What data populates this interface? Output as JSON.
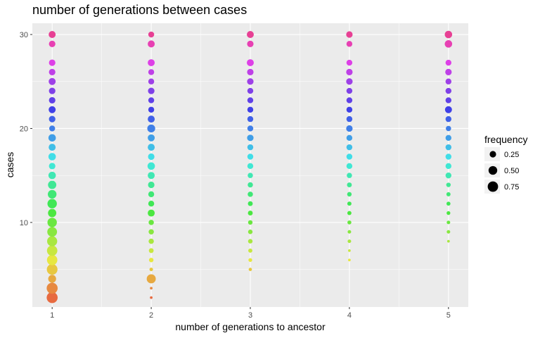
{
  "chart_data": {
    "type": "scatter",
    "title": "number of generations between cases",
    "xlabel": "number of generations to ancestor",
    "ylabel": "cases",
    "xlim": [
      0.8,
      5.2
    ],
    "ylim": [
      1,
      31.2
    ],
    "x_ticks": [
      1,
      2,
      3,
      4,
      5
    ],
    "y_ticks": [
      10,
      20,
      30
    ],
    "grid": true,
    "legend": {
      "title": "frequency",
      "position": "right",
      "entries": [
        {
          "label": "0.25",
          "value": 0.25
        },
        {
          "label": "0.50",
          "value": 0.5
        },
        {
          "label": "0.75",
          "value": 0.75
        }
      ]
    },
    "color_by": "cases",
    "series": [
      {
        "x": 1,
        "points": [
          {
            "y": 2,
            "f": 0.85
          },
          {
            "y": 3,
            "f": 0.85
          },
          {
            "y": 4,
            "f": 0.4
          },
          {
            "y": 5,
            "f": 0.8
          },
          {
            "y": 6,
            "f": 0.75
          },
          {
            "y": 7,
            "f": 0.75
          },
          {
            "y": 8,
            "f": 0.7
          },
          {
            "y": 9,
            "f": 0.65
          },
          {
            "y": 10,
            "f": 0.6
          },
          {
            "y": 11,
            "f": 0.45
          },
          {
            "y": 12,
            "f": 0.6
          },
          {
            "y": 13,
            "f": 0.5
          },
          {
            "y": 14,
            "f": 0.45
          },
          {
            "y": 15,
            "f": 0.35
          },
          {
            "y": 16,
            "f": 0.25
          },
          {
            "y": 17,
            "f": 0.35
          },
          {
            "y": 18,
            "f": 0.3
          },
          {
            "y": 19,
            "f": 0.35
          },
          {
            "y": 20,
            "f": 0.2
          },
          {
            "y": 21,
            "f": 0.25
          },
          {
            "y": 22,
            "f": 0.3
          },
          {
            "y": 23,
            "f": 0.25
          },
          {
            "y": 24,
            "f": 0.25
          },
          {
            "y": 25,
            "f": 0.3
          },
          {
            "y": 26,
            "f": 0.25
          },
          {
            "y": 27,
            "f": 0.25
          },
          {
            "y": 29,
            "f": 0.25
          },
          {
            "y": 30,
            "f": 0.3
          }
        ]
      },
      {
        "x": 2,
        "points": [
          {
            "y": 2,
            "f": 0.02
          },
          {
            "y": 3,
            "f": 0.02
          },
          {
            "y": 4,
            "f": 0.55
          },
          {
            "y": 5,
            "f": 0.05
          },
          {
            "y": 6,
            "f": 0.1
          },
          {
            "y": 7,
            "f": 0.12
          },
          {
            "y": 8,
            "f": 0.15
          },
          {
            "y": 9,
            "f": 0.15
          },
          {
            "y": 10,
            "f": 0.15
          },
          {
            "y": 11,
            "f": 0.3
          },
          {
            "y": 12,
            "f": 0.2
          },
          {
            "y": 13,
            "f": 0.2
          },
          {
            "y": 14,
            "f": 0.25
          },
          {
            "y": 15,
            "f": 0.3
          },
          {
            "y": 16,
            "f": 0.35
          },
          {
            "y": 17,
            "f": 0.25
          },
          {
            "y": 18,
            "f": 0.3
          },
          {
            "y": 19,
            "f": 0.3
          },
          {
            "y": 20,
            "f": 0.4
          },
          {
            "y": 21,
            "f": 0.3
          },
          {
            "y": 22,
            "f": 0.2
          },
          {
            "y": 23,
            "f": 0.2
          },
          {
            "y": 24,
            "f": 0.25
          },
          {
            "y": 25,
            "f": 0.2
          },
          {
            "y": 26,
            "f": 0.2
          },
          {
            "y": 27,
            "f": 0.3
          },
          {
            "y": 29,
            "f": 0.3
          },
          {
            "y": 30,
            "f": 0.2
          }
        ]
      },
      {
        "x": 3,
        "points": [
          {
            "y": 5,
            "f": 0.04
          },
          {
            "y": 6,
            "f": 0.06
          },
          {
            "y": 7,
            "f": 0.08
          },
          {
            "y": 8,
            "f": 0.1
          },
          {
            "y": 9,
            "f": 0.1
          },
          {
            "y": 10,
            "f": 0.1
          },
          {
            "y": 11,
            "f": 0.12
          },
          {
            "y": 12,
            "f": 0.12
          },
          {
            "y": 13,
            "f": 0.15
          },
          {
            "y": 14,
            "f": 0.15
          },
          {
            "y": 15,
            "f": 0.15
          },
          {
            "y": 16,
            "f": 0.2
          },
          {
            "y": 17,
            "f": 0.2
          },
          {
            "y": 18,
            "f": 0.2
          },
          {
            "y": 19,
            "f": 0.25
          },
          {
            "y": 20,
            "f": 0.2
          },
          {
            "y": 21,
            "f": 0.2
          },
          {
            "y": 22,
            "f": 0.2
          },
          {
            "y": 23,
            "f": 0.2
          },
          {
            "y": 24,
            "f": 0.2
          },
          {
            "y": 25,
            "f": 0.25
          },
          {
            "y": 26,
            "f": 0.25
          },
          {
            "y": 27,
            "f": 0.3
          },
          {
            "y": 29,
            "f": 0.25
          },
          {
            "y": 30,
            "f": 0.3
          }
        ]
      },
      {
        "x": 4,
        "points": [
          {
            "y": 6,
            "f": 0.02
          },
          {
            "y": 7,
            "f": 0.02
          },
          {
            "y": 8,
            "f": 0.05
          },
          {
            "y": 9,
            "f": 0.05
          },
          {
            "y": 10,
            "f": 0.07
          },
          {
            "y": 11,
            "f": 0.08
          },
          {
            "y": 12,
            "f": 0.08
          },
          {
            "y": 13,
            "f": 0.1
          },
          {
            "y": 14,
            "f": 0.12
          },
          {
            "y": 15,
            "f": 0.15
          },
          {
            "y": 16,
            "f": 0.2
          },
          {
            "y": 17,
            "f": 0.2
          },
          {
            "y": 18,
            "f": 0.2
          },
          {
            "y": 19,
            "f": 0.2
          },
          {
            "y": 20,
            "f": 0.25
          },
          {
            "y": 21,
            "f": 0.2
          },
          {
            "y": 22,
            "f": 0.2
          },
          {
            "y": 23,
            "f": 0.2
          },
          {
            "y": 24,
            "f": 0.2
          },
          {
            "y": 25,
            "f": 0.25
          },
          {
            "y": 26,
            "f": 0.25
          },
          {
            "y": 27,
            "f": 0.2
          },
          {
            "y": 29,
            "f": 0.2
          },
          {
            "y": 30,
            "f": 0.25
          }
        ]
      },
      {
        "x": 5,
        "points": [
          {
            "y": 8,
            "f": 0.02
          },
          {
            "y": 9,
            "f": 0.05
          },
          {
            "y": 10,
            "f": 0.05
          },
          {
            "y": 11,
            "f": 0.06
          },
          {
            "y": 12,
            "f": 0.07
          },
          {
            "y": 13,
            "f": 0.08
          },
          {
            "y": 14,
            "f": 0.1
          },
          {
            "y": 15,
            "f": 0.2
          },
          {
            "y": 16,
            "f": 0.2
          },
          {
            "y": 17,
            "f": 0.2
          },
          {
            "y": 18,
            "f": 0.2
          },
          {
            "y": 19,
            "f": 0.2
          },
          {
            "y": 20,
            "f": 0.15
          },
          {
            "y": 21,
            "f": 0.2
          },
          {
            "y": 22,
            "f": 0.3
          },
          {
            "y": 23,
            "f": 0.2
          },
          {
            "y": 24,
            "f": 0.2
          },
          {
            "y": 25,
            "f": 0.2
          },
          {
            "y": 26,
            "f": 0.25
          },
          {
            "y": 27,
            "f": 0.2
          },
          {
            "y": 29,
            "f": 0.35
          },
          {
            "y": 30,
            "f": 0.35
          }
        ]
      }
    ]
  },
  "colors": {
    "panel_background": "#ebebeb",
    "grid_line": "#ffffff",
    "legend_point": "#000000"
  }
}
